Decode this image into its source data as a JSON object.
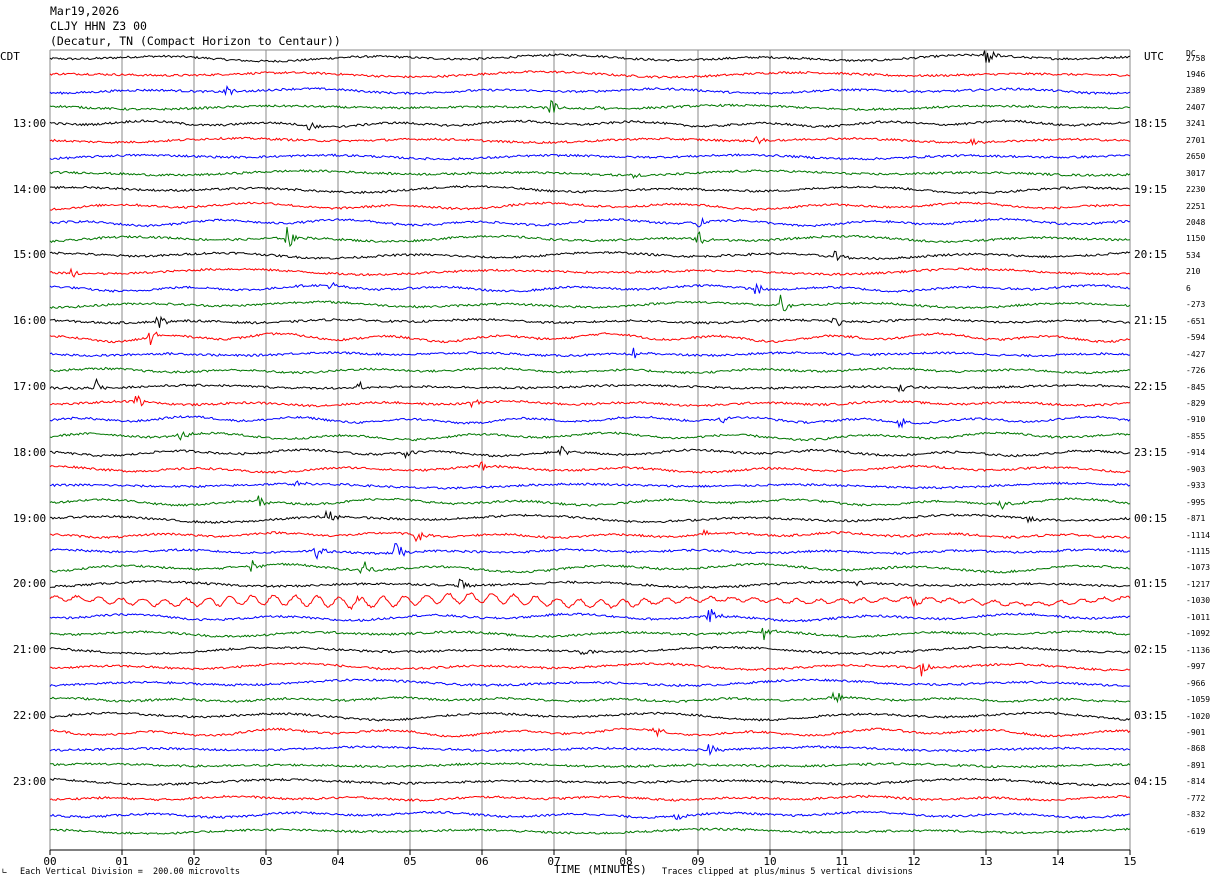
{
  "header": {
    "date": "Mar19,2026",
    "station": "CLJY HHN Z3 00",
    "location": "(Decatur, TN (Compact Horizon to Centaur))"
  },
  "left_tz": "CDT",
  "right_tz": "UTC",
  "dc_label": "DC",
  "colors": [
    "#000000",
    "#ff0000",
    "#0000ff",
    "#007700"
  ],
  "chart_data": {
    "type": "line",
    "xlabel": "TIME (MINUTES)",
    "x_ticks": [
      "00",
      "01",
      "02",
      "03",
      "04",
      "05",
      "06",
      "07",
      "08",
      "09",
      "10",
      "11",
      "12",
      "13",
      "14",
      "15"
    ],
    "xlim": [
      0,
      15
    ],
    "left_time_labels": [
      {
        "row": 4,
        "label": "13:00"
      },
      {
        "row": 8,
        "label": "14:00"
      },
      {
        "row": 12,
        "label": "15:00"
      },
      {
        "row": 16,
        "label": "16:00"
      },
      {
        "row": 20,
        "label": "17:00"
      },
      {
        "row": 24,
        "label": "18:00"
      },
      {
        "row": 28,
        "label": "19:00"
      },
      {
        "row": 32,
        "label": "20:00"
      },
      {
        "row": 36,
        "label": "21:00"
      },
      {
        "row": 40,
        "label": "22:00"
      },
      {
        "row": 44,
        "label": "23:00"
      }
    ],
    "right_time_labels": [
      {
        "row": 4,
        "label": "18:15"
      },
      {
        "row": 8,
        "label": "19:15"
      },
      {
        "row": 12,
        "label": "20:15"
      },
      {
        "row": 16,
        "label": "21:15"
      },
      {
        "row": 20,
        "label": "22:15"
      },
      {
        "row": 24,
        "label": "23:15"
      },
      {
        "row": 28,
        "label": "00:15"
      },
      {
        "row": 32,
        "label": "01:15"
      },
      {
        "row": 36,
        "label": "02:15"
      },
      {
        "row": 40,
        "label": "03:15"
      },
      {
        "row": 44,
        "label": "04:15"
      }
    ],
    "dc_offsets": [
      "2758",
      "1946",
      "2389",
      "2407",
      "3241",
      "2701",
      "2650",
      "3017",
      "2230",
      "2251",
      "2048",
      "1150",
      "534",
      "210",
      "6",
      "-273",
      "-651",
      "-594",
      "-427",
      "-726",
      "-845",
      "-829",
      "-910",
      "-855",
      "-914",
      "-903",
      "-933",
      "-995",
      "-871",
      "-1114",
      "-1115",
      "-1073",
      "-1217",
      "-1030",
      "-1011",
      "-1092",
      "-1136",
      "-997",
      "-966",
      "-1059",
      "-1020",
      "-901",
      "-868",
      "-891",
      "-814",
      "-772",
      "-832",
      "-619"
    ],
    "events": [
      {
        "row": 0,
        "x": 13.0,
        "a": 14
      },
      {
        "row": 2,
        "x": 2.45,
        "a": 9
      },
      {
        "row": 3,
        "x": 6.95,
        "a": 10
      },
      {
        "row": 3,
        "x": 7.6,
        "a": 6
      },
      {
        "row": 4,
        "x": 3.6,
        "a": 6
      },
      {
        "row": 5,
        "x": 9.8,
        "a": 5
      },
      {
        "row": 5,
        "x": 12.8,
        "a": 5
      },
      {
        "row": 7,
        "x": 8.1,
        "a": 5
      },
      {
        "row": 10,
        "x": 9.0,
        "a": 6
      },
      {
        "row": 11,
        "x": 3.3,
        "a": 13
      },
      {
        "row": 11,
        "x": 9.0,
        "a": 11
      },
      {
        "row": 12,
        "x": 10.9,
        "a": 8
      },
      {
        "row": 13,
        "x": 0.3,
        "a": 6
      },
      {
        "row": 14,
        "x": 3.9,
        "a": 6
      },
      {
        "row": 14,
        "x": 9.8,
        "a": 7
      },
      {
        "row": 15,
        "x": 10.15,
        "a": 11
      },
      {
        "row": 16,
        "x": 1.5,
        "a": 8
      },
      {
        "row": 16,
        "x": 10.9,
        "a": 8
      },
      {
        "row": 17,
        "x": 1.4,
        "a": 12
      },
      {
        "row": 18,
        "x": 8.1,
        "a": 7
      },
      {
        "row": 20,
        "x": 0.65,
        "a": 10
      },
      {
        "row": 20,
        "x": 4.3,
        "a": 7
      },
      {
        "row": 20,
        "x": 11.8,
        "a": 7
      },
      {
        "row": 21,
        "x": 1.2,
        "a": 9
      },
      {
        "row": 21,
        "x": 5.85,
        "a": 7
      },
      {
        "row": 22,
        "x": 9.3,
        "a": 7
      },
      {
        "row": 22,
        "x": 11.8,
        "a": 9
      },
      {
        "row": 23,
        "x": 1.8,
        "a": 6
      },
      {
        "row": 24,
        "x": 4.9,
        "a": 10
      },
      {
        "row": 24,
        "x": 7.1,
        "a": 7
      },
      {
        "row": 25,
        "x": 6.0,
        "a": 7
      },
      {
        "row": 26,
        "x": 3.4,
        "a": 6
      },
      {
        "row": 27,
        "x": 2.9,
        "a": 9
      },
      {
        "row": 27,
        "x": 13.2,
        "a": 8
      },
      {
        "row": 28,
        "x": 3.85,
        "a": 10
      },
      {
        "row": 28,
        "x": 13.6,
        "a": 7
      },
      {
        "row": 29,
        "x": 5.1,
        "a": 12
      },
      {
        "row": 29,
        "x": 9.1,
        "a": 6
      },
      {
        "row": 30,
        "x": 3.7,
        "a": 10
      },
      {
        "row": 30,
        "x": 4.8,
        "a": 12
      },
      {
        "row": 31,
        "x": 2.8,
        "a": 10
      },
      {
        "row": 31,
        "x": 4.35,
        "a": 11
      },
      {
        "row": 32,
        "x": 5.7,
        "a": 8
      },
      {
        "row": 32,
        "x": 11.2,
        "a": 7
      },
      {
        "row": 33,
        "x": 12.0,
        "a": 11
      },
      {
        "row": 33,
        "x": 4.2,
        "a": 8
      },
      {
        "row": 34,
        "x": 9.15,
        "a": 10
      },
      {
        "row": 35,
        "x": 9.9,
        "a": 11
      },
      {
        "row": 36,
        "x": 7.4,
        "a": 6
      },
      {
        "row": 37,
        "x": 12.1,
        "a": 10
      },
      {
        "row": 39,
        "x": 10.9,
        "a": 8
      },
      {
        "row": 41,
        "x": 8.4,
        "a": 8
      },
      {
        "row": 42,
        "x": 9.15,
        "a": 9
      },
      {
        "row": 46,
        "x": 8.7,
        "a": 6
      }
    ]
  },
  "footer": {
    "vertical_division": "Each Vertical Division =  200.00 microvolts",
    "clipping": "Traces clipped at plus/minus 5 vertical divisions"
  }
}
